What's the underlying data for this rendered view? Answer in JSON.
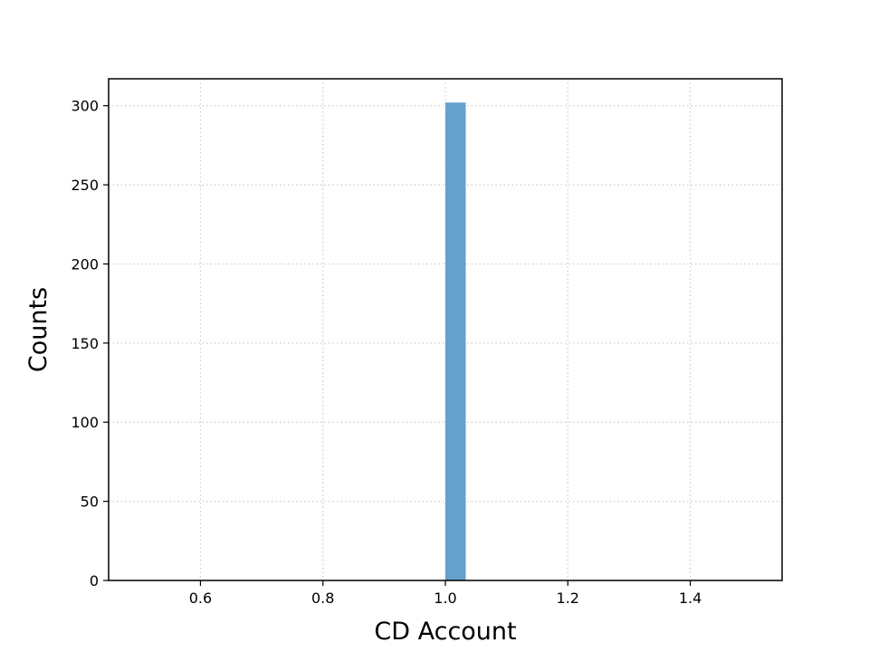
{
  "chart_data": {
    "type": "bar",
    "title": "",
    "xlabel": "CD Account",
    "ylabel": "Counts",
    "xlim": [
      0.45,
      1.55
    ],
    "ylim": [
      0,
      317
    ],
    "xticks": [
      0.6,
      0.8,
      1.0,
      1.2,
      1.4
    ],
    "xtick_labels": [
      "0.6",
      "0.8",
      "1.0",
      "1.2",
      "1.4"
    ],
    "yticks": [
      0,
      50,
      100,
      150,
      200,
      250,
      300
    ],
    "ytick_labels": [
      "0",
      "50",
      "100",
      "150",
      "200",
      "250",
      "300"
    ],
    "grid": true,
    "bins": [
      {
        "x0": 1.0,
        "x1": 1.0333,
        "count": 302
      }
    ],
    "bar_color": "#64a2cc"
  }
}
